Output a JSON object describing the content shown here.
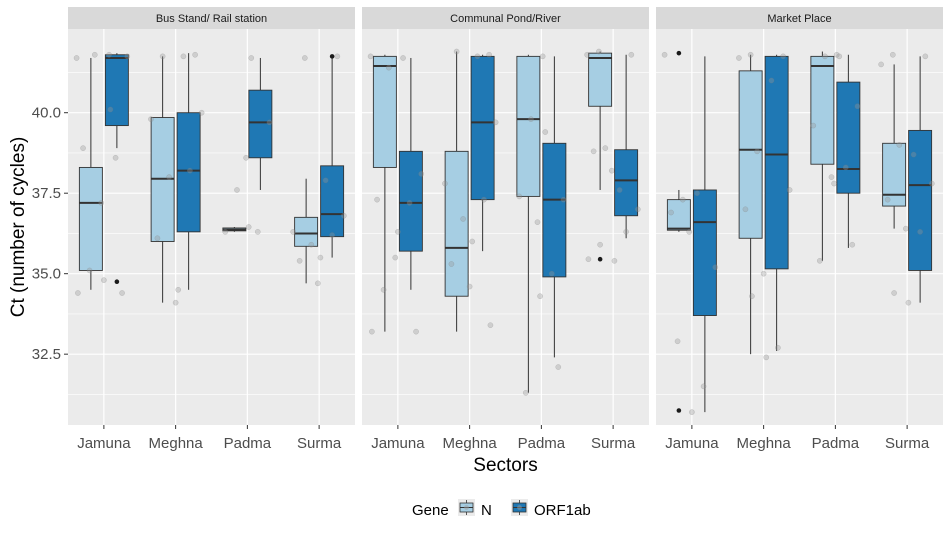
{
  "chart_data": {
    "type": "box",
    "facets": [
      "Bus Stand/ Rail station",
      "Communal Pond/River",
      "Market Place"
    ],
    "categories": [
      "Jamuna",
      "Meghna",
      "Padma",
      "Surma"
    ],
    "xlabel": "Sectors",
    "ylabel": "Ct (number of cycles)",
    "ylim": [
      30.3,
      42.6
    ],
    "yticks": [
      32.5,
      35.0,
      37.5,
      40.0
    ],
    "ytick_labels": [
      "32.5",
      "35.0",
      "37.5",
      "40.0"
    ],
    "legend": {
      "title": "Gene",
      "position": "bottom",
      "entries": [
        "N",
        "ORF1ab"
      ]
    },
    "colors": {
      "N": "#a6cee3",
      "ORF1ab": "#1f78b4",
      "panel_bg": "#ebebeb",
      "strip_bg": "#d9d9d9",
      "grid": "#ffffff",
      "jitter": "#999999"
    },
    "series": [
      {
        "name": "N",
        "boxes": [
          [
            {
              "min": 34.5,
              "q1": 35.1,
              "median": 37.2,
              "q3": 38.3,
              "max": 41.7,
              "outliers": []
            },
            {
              "min": 34.1,
              "q1": 36.0,
              "median": 37.95,
              "q3": 39.85,
              "max": 41.75,
              "outliers": []
            },
            {
              "min": 36.3,
              "q1": 36.33,
              "median": 36.37,
              "q3": 36.42,
              "max": 36.45,
              "outliers": []
            },
            {
              "min": 34.7,
              "q1": 35.85,
              "median": 36.25,
              "q3": 36.75,
              "max": 37.95,
              "outliers": []
            }
          ],
          [
            {
              "min": 33.2,
              "q1": 38.3,
              "median": 41.45,
              "q3": 41.75,
              "max": 41.8,
              "outliers": []
            },
            {
              "min": 33.2,
              "q1": 34.3,
              "median": 35.8,
              "q3": 38.8,
              "max": 41.9,
              "outliers": []
            },
            {
              "min": 31.3,
              "q1": 37.4,
              "median": 39.8,
              "q3": 41.75,
              "max": 41.8,
              "outliers": []
            },
            {
              "min": 37.6,
              "q1": 40.2,
              "median": 41.7,
              "q3": 41.85,
              "max": 41.9,
              "outliers": [
                35.45
              ]
            }
          ],
          [
            {
              "min": 36.3,
              "q1": 36.35,
              "median": 36.4,
              "q3": 37.3,
              "max": 37.6,
              "outliers": [
                41.85,
                30.75
              ]
            },
            {
              "min": 32.5,
              "q1": 36.1,
              "median": 38.85,
              "q3": 41.3,
              "max": 41.8,
              "outliers": []
            },
            {
              "min": 35.4,
              "q1": 38.4,
              "median": 41.45,
              "q3": 41.75,
              "max": 41.9,
              "outliers": []
            },
            {
              "min": 36.4,
              "q1": 37.1,
              "median": 37.45,
              "q3": 39.05,
              "max": 41.5,
              "outliers": []
            }
          ]
        ]
      },
      {
        "name": "ORF1ab",
        "boxes": [
          [
            {
              "min": 38.9,
              "q1": 39.6,
              "median": 41.7,
              "q3": 41.8,
              "max": 41.85,
              "outliers": [
                34.75
              ]
            },
            {
              "min": 34.5,
              "q1": 36.3,
              "median": 38.2,
              "q3": 40.0,
              "max": 41.85,
              "outliers": []
            },
            {
              "min": 37.6,
              "q1": 38.6,
              "median": 39.7,
              "q3": 40.7,
              "max": 41.7,
              "outliers": []
            },
            {
              "min": 35.5,
              "q1": 36.15,
              "median": 36.85,
              "q3": 38.35,
              "max": 41.75,
              "outliers": [
                41.75
              ]
            }
          ],
          [
            {
              "min": 34.5,
              "q1": 35.7,
              "median": 37.2,
              "q3": 38.8,
              "max": 41.7,
              "outliers": []
            },
            {
              "min": 35.7,
              "q1": 37.3,
              "median": 39.7,
              "q3": 41.75,
              "max": 41.8,
              "outliers": []
            },
            {
              "min": 32.4,
              "q1": 34.9,
              "median": 37.3,
              "q3": 39.05,
              "max": 41.75,
              "outliers": []
            },
            {
              "min": 36.1,
              "q1": 36.8,
              "median": 37.9,
              "q3": 38.85,
              "max": 41.8,
              "outliers": []
            }
          ],
          [
            {
              "min": 30.7,
              "q1": 33.7,
              "median": 36.6,
              "q3": 37.6,
              "max": 41.75,
              "outliers": []
            },
            {
              "min": 32.6,
              "q1": 35.15,
              "median": 38.7,
              "q3": 41.75,
              "max": 41.8,
              "outliers": []
            },
            {
              "min": 35.8,
              "q1": 37.5,
              "median": 38.25,
              "q3": 40.95,
              "max": 41.8,
              "outliers": []
            },
            {
              "min": 34.1,
              "q1": 35.1,
              "median": 37.75,
              "q3": 39.45,
              "max": 41.75,
              "outliers": []
            }
          ]
        ]
      }
    ],
    "jitter_points": [
      [
        [
          [
            41.7,
            41.8,
            38.9,
            37.2,
            35.1,
            34.4
          ],
          [
            41.8,
            41.75,
            38.6,
            34.8,
            34.4,
            40.1
          ]
        ],
        [
          [
            41.75,
            39.8,
            38.0,
            36.1,
            34.1
          ],
          [
            41.8,
            41.75,
            40.0,
            38.2,
            34.5
          ]
        ],
        [
          [
            36.45,
            37.6,
            36.3
          ],
          [
            41.7,
            39.7,
            36.3,
            38.6
          ]
        ],
        [
          [
            41.7,
            36.3,
            35.9,
            35.4,
            34.7
          ],
          [
            41.75,
            37.9,
            36.8,
            36.2,
            35.5
          ]
        ]
      ],
      [
        [
          [
            41.75,
            41.4,
            37.3,
            35.5,
            34.5,
            33.2
          ],
          [
            41.7,
            38.1,
            37.2,
            36.3,
            33.2
          ]
        ],
        [
          [
            41.9,
            37.8,
            36.7,
            35.3,
            34.6
          ],
          [
            41.8,
            41.75,
            39.7,
            37.3,
            36.0,
            33.4
          ]
        ],
        [
          [
            41.75,
            39.8,
            37.4,
            36.6,
            31.3
          ],
          [
            39.4,
            37.3,
            35.0,
            34.3,
            32.1
          ]
        ],
        [
          [
            41.9,
            41.8,
            38.9,
            38.8,
            38.2,
            35.9,
            35.45
          ],
          [
            41.8,
            37.6,
            37.0,
            36.3,
            35.4
          ]
        ]
      ],
      [
        [
          [
            41.8,
            37.3,
            36.9,
            36.3,
            32.9
          ],
          [
            37.5,
            35.2,
            31.5,
            30.7
          ]
        ],
        [
          [
            41.8,
            41.7,
            38.8,
            37.0,
            35.0,
            34.3
          ],
          [
            41.75,
            41.0,
            37.6,
            32.7,
            32.4
          ]
        ],
        [
          [
            41.8,
            41.75,
            39.6,
            38.0,
            35.4
          ],
          [
            41.75,
            40.2,
            38.3,
            37.8,
            35.9
          ]
        ],
        [
          [
            41.8,
            41.5,
            39.0,
            37.3,
            36.4,
            34.4
          ],
          [
            41.75,
            38.7,
            37.8,
            36.3,
            34.1
          ]
        ]
      ]
    ]
  }
}
